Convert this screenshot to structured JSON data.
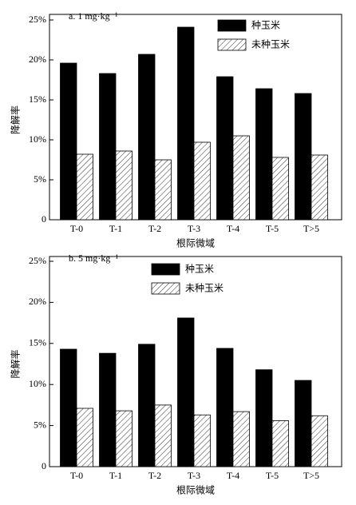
{
  "chart_data": [
    {
      "type": "bar",
      "title": "a. 1 mg·kg⁻¹",
      "xlabel": "根际微域",
      "ylabel": "降解率",
      "categories": [
        "T-0",
        "T-1",
        "T-2",
        "T-3",
        "T-4",
        "T-5",
        "T>5"
      ],
      "series": [
        {
          "name": "种玉米",
          "color": "#000000",
          "values": [
            19.6,
            18.3,
            20.7,
            24.1,
            17.9,
            16.4,
            15.8
          ]
        },
        {
          "name": "未种玉米",
          "color": "#ffffff",
          "hatch": true,
          "values": [
            8.2,
            8.6,
            7.5,
            9.7,
            10.5,
            7.8,
            8.1
          ]
        }
      ],
      "ylim": [
        0,
        25
      ],
      "yticks": [
        {
          "value": 0,
          "label": "0"
        },
        {
          "value": 5,
          "label": "5%"
        },
        {
          "value": 10,
          "label": "10%"
        },
        {
          "value": 15,
          "label": "15%"
        },
        {
          "value": 20,
          "label": "20%"
        },
        {
          "value": 25,
          "label": "25%"
        }
      ],
      "legend": "top-right"
    },
    {
      "type": "bar",
      "title": "b. 5 mg·kg⁻¹",
      "xlabel": "根际微域",
      "ylabel": "降解率",
      "categories": [
        "T-0",
        "T-1",
        "T-2",
        "T-3",
        "T-4",
        "T-5",
        "T>5"
      ],
      "series": [
        {
          "name": "种玉米",
          "color": "#000000",
          "values": [
            14.3,
            13.8,
            14.9,
            18.1,
            14.4,
            11.8,
            10.5
          ]
        },
        {
          "name": "未种玉米",
          "color": "#ffffff",
          "hatch": true,
          "values": [
            7.1,
            6.8,
            7.5,
            6.3,
            6.7,
            5.6,
            6.2
          ]
        }
      ],
      "ylim": [
        0,
        25
      ],
      "yticks": [
        {
          "value": 0,
          "label": "0"
        },
        {
          "value": 5,
          "label": "5%"
        },
        {
          "value": 10,
          "label": "10%"
        },
        {
          "value": 15,
          "label": "15%"
        },
        {
          "value": 20,
          "label": "20%"
        },
        {
          "value": 25,
          "label": "25%"
        }
      ],
      "legend": "top-center"
    }
  ]
}
